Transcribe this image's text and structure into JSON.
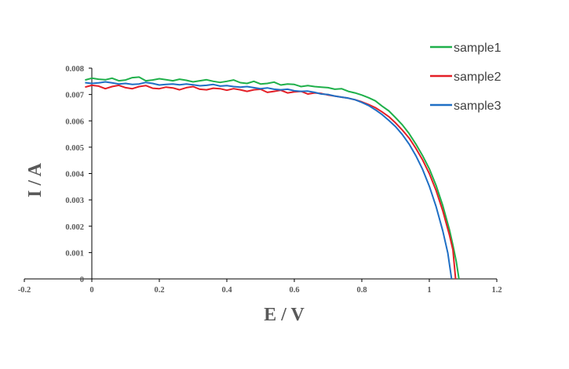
{
  "chart_data": {
    "type": "line",
    "xlabel": "E / V",
    "ylabel": "I / A",
    "xlim": [
      -0.2,
      1.2
    ],
    "ylim": [
      0,
      0.008
    ],
    "x_ticks": [
      "-0.2",
      "0",
      "0.2",
      "0.4",
      "0.6",
      "0.8",
      "1",
      "1.2"
    ],
    "y_ticks": [
      "0",
      "0.001",
      "0.002",
      "0.003",
      "0.004",
      "0.005",
      "0.006",
      "0.007",
      "0.008"
    ],
    "legend_position": "top-right",
    "grid": false,
    "series": [
      {
        "name": "sample1",
        "color": "#1fb04a",
        "points": [
          [
            -0.02,
            0.00755
          ],
          [
            0.0,
            0.00762
          ],
          [
            0.02,
            0.00758
          ],
          [
            0.04,
            0.00756
          ],
          [
            0.06,
            0.00762
          ],
          [
            0.08,
            0.00752
          ],
          [
            0.1,
            0.00755
          ],
          [
            0.12,
            0.00764
          ],
          [
            0.14,
            0.00766
          ],
          [
            0.16,
            0.00752
          ],
          [
            0.18,
            0.00755
          ],
          [
            0.2,
            0.0076
          ],
          [
            0.22,
            0.00756
          ],
          [
            0.24,
            0.00752
          ],
          [
            0.26,
            0.00758
          ],
          [
            0.28,
            0.00754
          ],
          [
            0.3,
            0.00748
          ],
          [
            0.32,
            0.00752
          ],
          [
            0.34,
            0.00756
          ],
          [
            0.36,
            0.0075
          ],
          [
            0.38,
            0.00746
          ],
          [
            0.4,
            0.0075
          ],
          [
            0.42,
            0.00755
          ],
          [
            0.44,
            0.00745
          ],
          [
            0.46,
            0.00742
          ],
          [
            0.48,
            0.0075
          ],
          [
            0.5,
            0.0074
          ],
          [
            0.52,
            0.00742
          ],
          [
            0.54,
            0.00747
          ],
          [
            0.56,
            0.00736
          ],
          [
            0.58,
            0.0074
          ],
          [
            0.6,
            0.00738
          ],
          [
            0.62,
            0.0073
          ],
          [
            0.64,
            0.00734
          ],
          [
            0.66,
            0.0073
          ],
          [
            0.68,
            0.00728
          ],
          [
            0.7,
            0.00726
          ],
          [
            0.72,
            0.0072
          ],
          [
            0.74,
            0.00722
          ],
          [
            0.76,
            0.00712
          ],
          [
            0.78,
            0.00706
          ],
          [
            0.8,
            0.00698
          ],
          [
            0.82,
            0.00688
          ],
          [
            0.84,
            0.00676
          ],
          [
            0.86,
            0.00656
          ],
          [
            0.88,
            0.00638
          ],
          [
            0.9,
            0.00612
          ],
          [
            0.92,
            0.00585
          ],
          [
            0.94,
            0.00552
          ],
          [
            0.96,
            0.00512
          ],
          [
            0.98,
            0.00468
          ],
          [
            1.0,
            0.00418
          ],
          [
            1.02,
            0.00355
          ],
          [
            1.04,
            0.00278
          ],
          [
            1.06,
            0.00185
          ],
          [
            1.07,
            0.00128
          ],
          [
            1.08,
            0.00065
          ],
          [
            1.088,
            0.0
          ]
        ]
      },
      {
        "name": "sample2",
        "color": "#e41e26",
        "points": [
          [
            -0.02,
            0.00728
          ],
          [
            0.0,
            0.00735
          ],
          [
            0.02,
            0.00732
          ],
          [
            0.04,
            0.00722
          ],
          [
            0.06,
            0.0073
          ],
          [
            0.08,
            0.00735
          ],
          [
            0.1,
            0.00726
          ],
          [
            0.12,
            0.00722
          ],
          [
            0.14,
            0.0073
          ],
          [
            0.16,
            0.00734
          ],
          [
            0.18,
            0.00724
          ],
          [
            0.2,
            0.00722
          ],
          [
            0.22,
            0.00728
          ],
          [
            0.24,
            0.00725
          ],
          [
            0.26,
            0.00718
          ],
          [
            0.28,
            0.00726
          ],
          [
            0.3,
            0.0073
          ],
          [
            0.32,
            0.0072
          ],
          [
            0.34,
            0.00718
          ],
          [
            0.36,
            0.00724
          ],
          [
            0.38,
            0.00722
          ],
          [
            0.4,
            0.00716
          ],
          [
            0.42,
            0.00722
          ],
          [
            0.44,
            0.00718
          ],
          [
            0.46,
            0.00712
          ],
          [
            0.48,
            0.00718
          ],
          [
            0.5,
            0.0072
          ],
          [
            0.52,
            0.00708
          ],
          [
            0.54,
            0.00712
          ],
          [
            0.56,
            0.00716
          ],
          [
            0.58,
            0.00706
          ],
          [
            0.6,
            0.0071
          ],
          [
            0.62,
            0.00712
          ],
          [
            0.64,
            0.00702
          ],
          [
            0.66,
            0.00706
          ],
          [
            0.68,
            0.00704
          ],
          [
            0.7,
            0.00698
          ],
          [
            0.72,
            0.00694
          ],
          [
            0.74,
            0.0069
          ],
          [
            0.76,
            0.00686
          ],
          [
            0.78,
            0.0068
          ],
          [
            0.8,
            0.00672
          ],
          [
            0.82,
            0.00662
          ],
          [
            0.84,
            0.0065
          ],
          [
            0.86,
            0.00634
          ],
          [
            0.88,
            0.00616
          ],
          [
            0.9,
            0.00592
          ],
          [
            0.92,
            0.00565
          ],
          [
            0.94,
            0.00535
          ],
          [
            0.96,
            0.00496
          ],
          [
            0.98,
            0.00452
          ],
          [
            1.0,
            0.004
          ],
          [
            1.02,
            0.00336
          ],
          [
            1.04,
            0.00258
          ],
          [
            1.06,
            0.00165
          ],
          [
            1.07,
            0.0011
          ],
          [
            1.078,
            0.0
          ]
        ]
      },
      {
        "name": "sample3",
        "color": "#1f6fc5",
        "points": [
          [
            -0.02,
            0.00745
          ],
          [
            0.0,
            0.00742
          ],
          [
            0.02,
            0.00744
          ],
          [
            0.04,
            0.00748
          ],
          [
            0.06,
            0.00744
          ],
          [
            0.08,
            0.0074
          ],
          [
            0.1,
            0.00742
          ],
          [
            0.12,
            0.00738
          ],
          [
            0.14,
            0.0074
          ],
          [
            0.16,
            0.00746
          ],
          [
            0.18,
            0.00742
          ],
          [
            0.2,
            0.00736
          ],
          [
            0.22,
            0.00738
          ],
          [
            0.24,
            0.0074
          ],
          [
            0.26,
            0.00737
          ],
          [
            0.28,
            0.0074
          ],
          [
            0.3,
            0.00737
          ],
          [
            0.32,
            0.00733
          ],
          [
            0.34,
            0.00735
          ],
          [
            0.36,
            0.00738
          ],
          [
            0.38,
            0.00732
          ],
          [
            0.4,
            0.00734
          ],
          [
            0.42,
            0.0073
          ],
          [
            0.44,
            0.00728
          ],
          [
            0.46,
            0.0073
          ],
          [
            0.48,
            0.00726
          ],
          [
            0.5,
            0.00722
          ],
          [
            0.52,
            0.00725
          ],
          [
            0.54,
            0.0072
          ],
          [
            0.56,
            0.00718
          ],
          [
            0.58,
            0.0072
          ],
          [
            0.6,
            0.00714
          ],
          [
            0.62,
            0.00712
          ],
          [
            0.64,
            0.00713
          ],
          [
            0.66,
            0.00708
          ],
          [
            0.68,
            0.00702
          ],
          [
            0.7,
            0.007
          ],
          [
            0.72,
            0.00694
          ],
          [
            0.74,
            0.0069
          ],
          [
            0.76,
            0.00686
          ],
          [
            0.78,
            0.0068
          ],
          [
            0.8,
            0.0067
          ],
          [
            0.82,
            0.00658
          ],
          [
            0.84,
            0.00642
          ],
          [
            0.86,
            0.00624
          ],
          [
            0.88,
            0.00602
          ],
          [
            0.9,
            0.00578
          ],
          [
            0.92,
            0.00548
          ],
          [
            0.94,
            0.00512
          ],
          [
            0.96,
            0.00468
          ],
          [
            0.98,
            0.00416
          ],
          [
            1.0,
            0.00352
          ],
          [
            1.02,
            0.00275
          ],
          [
            1.04,
            0.00182
          ],
          [
            1.055,
            0.00098
          ],
          [
            1.066,
            0.0
          ]
        ]
      }
    ]
  }
}
